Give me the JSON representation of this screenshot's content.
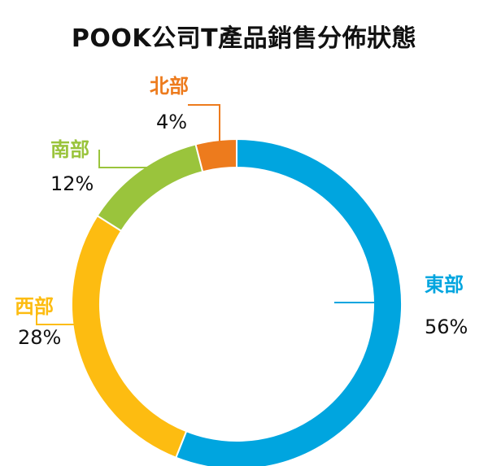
{
  "chart_data": {
    "type": "pie",
    "style": "donut",
    "title": "POOK公司T產品銷售分佈狀態",
    "slices": [
      {
        "label": "東部",
        "value": 56,
        "value_text": "56%",
        "color": "#00a5df"
      },
      {
        "label": "西部",
        "value": 28,
        "value_text": "28%",
        "color": "#fdbc11"
      },
      {
        "label": "南部",
        "value": 12,
        "value_text": "12%",
        "color": "#9ac43c"
      },
      {
        "label": "北部",
        "value": 4,
        "value_text": "4%",
        "color": "#ed7b1d"
      }
    ],
    "start_angle": "12 o'clock",
    "direction": "clockwise",
    "legend": "none"
  }
}
